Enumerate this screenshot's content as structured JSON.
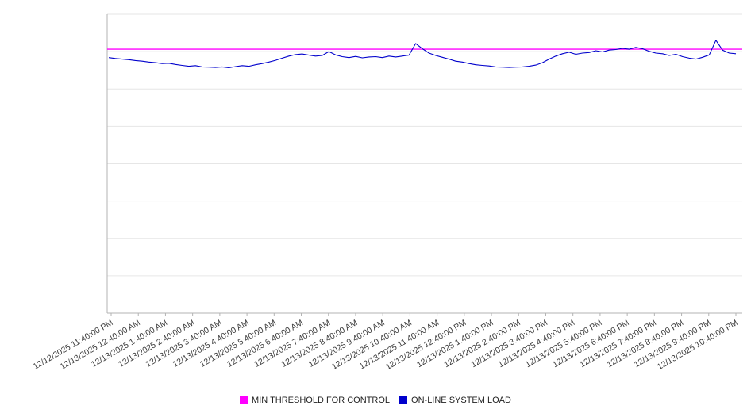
{
  "legend": {
    "items": [
      {
        "label": "MIN THRESHOLD FOR CONTROL",
        "color": "#ff00ff"
      },
      {
        "label": "ON-LINE SYSTEM LOAD",
        "color": "#0000cc"
      }
    ]
  },
  "chart_data": {
    "type": "line",
    "title": "",
    "xlabel": "",
    "ylabel": "",
    "ylim": [
      0,
      100
    ],
    "y_tick_labels_visible": false,
    "grid": {
      "horizontal_lines": 9
    },
    "legend_position": "bottom-center",
    "colors": {
      "grid": "#e6e6e6",
      "axis": "#b3b3b3",
      "threshold": "#ff00ff",
      "load": "#0000cc"
    },
    "x_tick_labels": [
      "12/12/2025 11:40:00 PM",
      "12/13/2025 12:40:00 AM",
      "12/13/2025 1:40:00 AM",
      "12/13/2025 2:40:00 AM",
      "12/13/2025 3:40:00 AM",
      "12/13/2025 4:40:00 AM",
      "12/13/2025 5:40:00 AM",
      "12/13/2025 6:40:00 AM",
      "12/13/2025 7:40:00 AM",
      "12/13/2025 8:40:00 AM",
      "12/13/2025 9:40:00 AM",
      "12/13/2025 10:40:00 AM",
      "12/13/2025 11:40:00 AM",
      "12/13/2025 12:40:00 PM",
      "12/13/2025 1:40:00 PM",
      "12/13/2025 2:40:00 PM",
      "12/13/2025 3:40:00 PM",
      "12/13/2025 4:40:00 PM",
      "12/13/2025 5:40:00 PM",
      "12/13/2025 6:40:00 PM",
      "12/13/2025 7:40:00 PM",
      "12/13/2025 8:40:00 PM",
      "12/13/2025 9:40:00 PM",
      "12/13/2025 10:40:00 PM"
    ],
    "series": [
      {
        "name": "MIN THRESHOLD FOR CONTROL",
        "type": "threshold",
        "color": "#ff00ff",
        "value": 88.3
      },
      {
        "name": "ON-LINE SYSTEM LOAD",
        "type": "line",
        "color": "#0000cc",
        "values": [
          85.5,
          85.2,
          85.0,
          84.8,
          84.5,
          84.3,
          84.0,
          83.8,
          83.5,
          83.6,
          83.2,
          82.9,
          82.6,
          82.8,
          82.4,
          82.3,
          82.2,
          82.4,
          82.1,
          82.5,
          82.8,
          82.6,
          83.1,
          83.5,
          84.0,
          84.6,
          85.3,
          86.0,
          86.5,
          86.7,
          86.3,
          86.0,
          86.2,
          87.5,
          86.4,
          85.8,
          85.5,
          85.9,
          85.4,
          85.7,
          85.8,
          85.5,
          86.0,
          85.7,
          86.0,
          86.3,
          90.2,
          88.5,
          87.0,
          86.2,
          85.6,
          85.0,
          84.3,
          84.0,
          83.5,
          83.1,
          82.9,
          82.7,
          82.4,
          82.3,
          82.2,
          82.3,
          82.4,
          82.6,
          83.0,
          83.8,
          85.0,
          86.0,
          86.8,
          87.3,
          86.6,
          87.0,
          87.2,
          87.8,
          87.4,
          88.0,
          88.2,
          88.6,
          88.3,
          88.9,
          88.5,
          87.6,
          87.0,
          86.8,
          86.2,
          86.6,
          85.8,
          85.3,
          85.0,
          85.6,
          86.4,
          91.3,
          88.0,
          87.0,
          86.8
        ]
      }
    ]
  }
}
